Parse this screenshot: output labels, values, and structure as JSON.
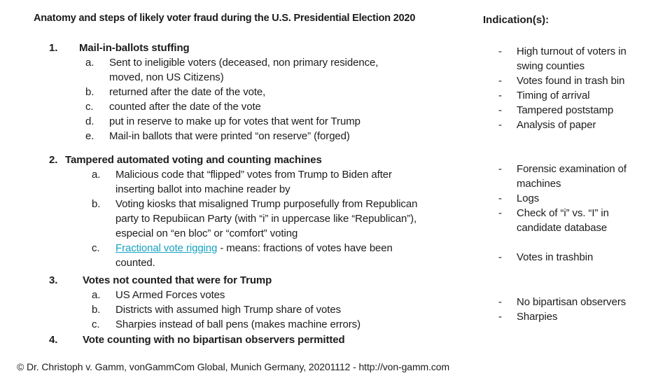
{
  "page": {
    "title": "Anatomy and steps of likely voter fraud during the U.S. Presidential Election 2020",
    "footer": "© Dr. Christoph v. Gamm, vonGammCom Global, Munich Germany, 20201112 - http://von-gamm.com"
  },
  "colors": {
    "background": "#ffffff",
    "text": "#1c1c1c",
    "link": "#17a2c0"
  },
  "outline": [
    {
      "number": "1.",
      "title": "Mail-in-ballots stuffing",
      "items": [
        {
          "letter": "a.",
          "lines": [
            "Sent to ineligible voters (deceased, non primary residence,",
            "moved, non US Citizens)"
          ]
        },
        {
          "letter": "b.",
          "lines": [
            "returned after the date of the vote,"
          ]
        },
        {
          "letter": "c.",
          "lines": [
            "counted after the date of the vote"
          ]
        },
        {
          "letter": "d.",
          "lines": [
            "put in reserve to make up for votes that went for Trump"
          ]
        },
        {
          "letter": "e.",
          "lines": [
            "Mail-in ballots that were printed “on reserve” (forged)"
          ]
        }
      ]
    },
    {
      "number": "2.",
      "title": "Tampered automated voting and counting machines",
      "items": [
        {
          "letter": "a.",
          "lines": [
            "Malicious code that “flipped” votes from Trump to Biden after",
            "inserting ballot into machine reader by"
          ]
        },
        {
          "letter": "b.",
          "lines": [
            "Voting kiosks that misaligned Trump purposefully from Republican",
            "party to Repubiican Party (with “i” in uppercase like “Republican”),",
            "especial on “en bloc” or “comfort” voting"
          ]
        },
        {
          "letter": "c.",
          "lines": [
            [
              {
                "text": "Fractional vote rigging",
                "link": true
              },
              {
                "text": " - means: fractions of votes have been"
              }
            ],
            "counted."
          ]
        }
      ]
    },
    {
      "number": "3.",
      "title": "Votes not counted that were for Trump",
      "items": [
        {
          "letter": "a.",
          "lines": [
            "US Armed Forces votes"
          ]
        },
        {
          "letter": "b.",
          "lines": [
            "Districts with assumed high Trump share of votes"
          ]
        },
        {
          "letter": "c.",
          "lines": [
            "Sharpies instead of ball pens (makes machine errors)"
          ]
        }
      ]
    },
    {
      "number": "4.",
      "title": "Vote counting with no bipartisan observers permitted",
      "items": []
    }
  ],
  "indications": {
    "header": "Indication(s):",
    "groups": [
      {
        "items": [
          {
            "lines": [
              "High turnout of voters in",
              "swing counties"
            ]
          },
          {
            "lines": [
              "Votes found in trash bin"
            ]
          },
          {
            "lines": [
              "Timing of arrival"
            ]
          },
          {
            "lines": [
              "Tampered poststamp"
            ]
          },
          {
            "lines": [
              "Analysis of paper"
            ]
          }
        ]
      },
      {
        "items": [
          {
            "lines": [
              "Forensic examination of",
              "machines"
            ]
          },
          {
            "lines": [
              "Logs"
            ]
          },
          {
            "lines": [
              "Check of “i” vs. “I” in",
              "candidate database"
            ]
          }
        ]
      },
      {
        "items": [
          {
            "lines": [
              "Votes in trashbin"
            ]
          }
        ]
      },
      {
        "items": [
          {
            "lines": [
              "No bipartisan observers"
            ]
          },
          {
            "lines": [
              "Sharpies"
            ]
          }
        ]
      }
    ]
  }
}
